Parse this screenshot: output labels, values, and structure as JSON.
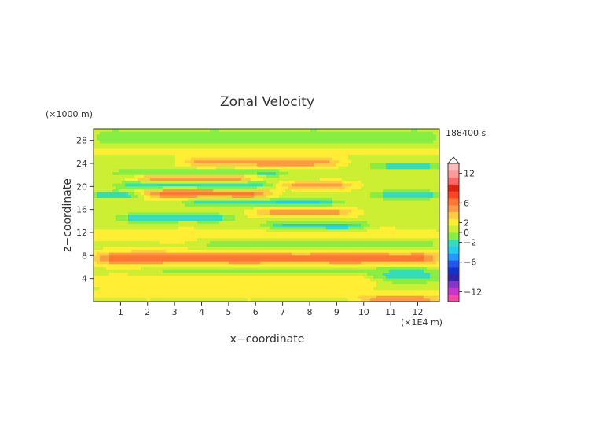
{
  "chart_data": {
    "type": "heatmap",
    "title": "Zonal Velocity",
    "time_label": "188400 s",
    "xlabel": "x−coordinate",
    "ylabel": "z−coordinate",
    "x_unit": "(×1E4 m)",
    "y_unit": "(×1000 m)",
    "x_range": [
      0,
      12.8
    ],
    "y_range": [
      0,
      30
    ],
    "x_ticks": [
      1,
      2,
      3,
      4,
      5,
      6,
      7,
      8,
      9,
      10,
      11,
      12
    ],
    "y_ticks": [
      4,
      8,
      12,
      16,
      20,
      24,
      28
    ],
    "colorbar": {
      "range": [
        -14,
        14
      ],
      "tick_values": [
        12,
        6,
        2,
        0,
        -2,
        -6,
        -12
      ],
      "tick_labels": [
        "12",
        "6",
        "2",
        "0",
        "−2",
        "−6",
        "−12"
      ],
      "levels": [
        -14,
        -12,
        -10,
        -8,
        -6,
        -5,
        -4,
        -3,
        -2,
        -1,
        0,
        1,
        2,
        3,
        4,
        5,
        6,
        8,
        10,
        12,
        14
      ],
      "colors": [
        "#ff44aa",
        "#cc33cc",
        "#8833cc",
        "#3322aa",
        "#1133cc",
        "#2255ee",
        "#2299ff",
        "#22ccee",
        "#33ddbb",
        "#88ee44",
        "#ccee33",
        "#ffee33",
        "#ffcc44",
        "#ff9944",
        "#ff7733",
        "#ff4422",
        "#dd2211",
        "#ff6666",
        "#ff9999",
        "#ffbbbb"
      ]
    },
    "bands": [
      {
        "z": 28.5,
        "amp": -1.2,
        "width": 1.6,
        "x0": 0,
        "x1": 12.8
      },
      {
        "z": 26.2,
        "amp": 0.9,
        "width": 0.8,
        "x0": 0,
        "x1": 12.8
      },
      {
        "z": 24.2,
        "amp": 3.2,
        "width": 0.8,
        "x0": 3.5,
        "x1": 9
      },
      {
        "z": 23.5,
        "amp": -2.6,
        "width": 0.6,
        "x0": 10.5,
        "x1": 12.8
      },
      {
        "z": 22.3,
        "amp": -2.4,
        "width": 0.7,
        "x0": 1,
        "x1": 7
      },
      {
        "z": 21.5,
        "amp": 3.4,
        "width": 0.8,
        "x0": 1.5,
        "x1": 6
      },
      {
        "z": 20.2,
        "amp": -3.0,
        "width": 0.7,
        "x0": 1,
        "x1": 6.5
      },
      {
        "z": 20.2,
        "amp": 3.0,
        "width": 0.7,
        "x0": 7,
        "x1": 9.5
      },
      {
        "z": 18.8,
        "amp": 3.6,
        "width": 0.9,
        "x0": 1.5,
        "x1": 6.5
      },
      {
        "z": 18.5,
        "amp": -3.2,
        "width": 0.6,
        "x0": 0,
        "x1": 2
      },
      {
        "z": 18.5,
        "amp": -3.0,
        "width": 0.7,
        "x0": 10.5,
        "x1": 12.8
      },
      {
        "z": 17.2,
        "amp": -2.8,
        "width": 0.6,
        "x0": 3.5,
        "x1": 9
      },
      {
        "z": 15.5,
        "amp": 2.8,
        "width": 0.8,
        "x0": 6,
        "x1": 9.5
      },
      {
        "z": 14.5,
        "amp": -2.6,
        "width": 0.7,
        "x0": 1,
        "x1": 5
      },
      {
        "z": 13.2,
        "amp": -3.0,
        "width": 0.7,
        "x0": 6.5,
        "x1": 10
      },
      {
        "z": 11.5,
        "amp": 0.8,
        "width": 1.2,
        "x0": 0,
        "x1": 12.8
      },
      {
        "z": 10.0,
        "amp": -1.4,
        "width": 0.9,
        "x0": 4,
        "x1": 12.8
      },
      {
        "z": 7.5,
        "amp": 3.6,
        "width": 1.2,
        "x0": 0,
        "x1": 12.8
      },
      {
        "z": 5.5,
        "amp": -1.0,
        "width": 1.0,
        "x0": 2,
        "x1": 12.8
      },
      {
        "z": 3.5,
        "amp": 1.2,
        "width": 1.0,
        "x0": 0,
        "x1": 12.8
      },
      {
        "z": 4.0,
        "amp": -2.8,
        "width": 1.2,
        "x0": 10.5,
        "x1": 12.8
      },
      {
        "z": 1.2,
        "amp": 0.8,
        "width": 0.9,
        "x0": 0,
        "x1": 12.8
      },
      {
        "z": 0.4,
        "amp": 3.0,
        "width": 0.5,
        "x0": 10,
        "x1": 12.8
      }
    ]
  }
}
